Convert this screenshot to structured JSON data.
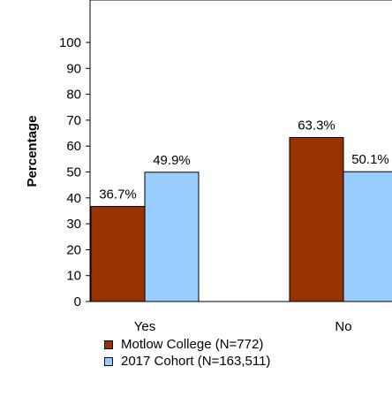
{
  "chart_data": {
    "type": "bar",
    "ylabel": "Percentage",
    "xlabel": "",
    "title": "",
    "ylim": [
      0,
      100
    ],
    "yticks": [
      0,
      10,
      20,
      30,
      40,
      50,
      60,
      70,
      80,
      90,
      100
    ],
    "categories": [
      "Yes",
      "No"
    ],
    "series": [
      {
        "name": "Motlow College (N=772)",
        "values": [
          36.7,
          63.3
        ],
        "labels": [
          "36.7%",
          "63.3%"
        ],
        "color": "#993300"
      },
      {
        "name": "2017 Cohort (N=163,511)",
        "values": [
          49.9,
          50.1
        ],
        "labels": [
          "49.9%",
          "50.1%"
        ],
        "color": "#99ccff"
      }
    ],
    "grid": false,
    "legend_position": "bottom"
  }
}
